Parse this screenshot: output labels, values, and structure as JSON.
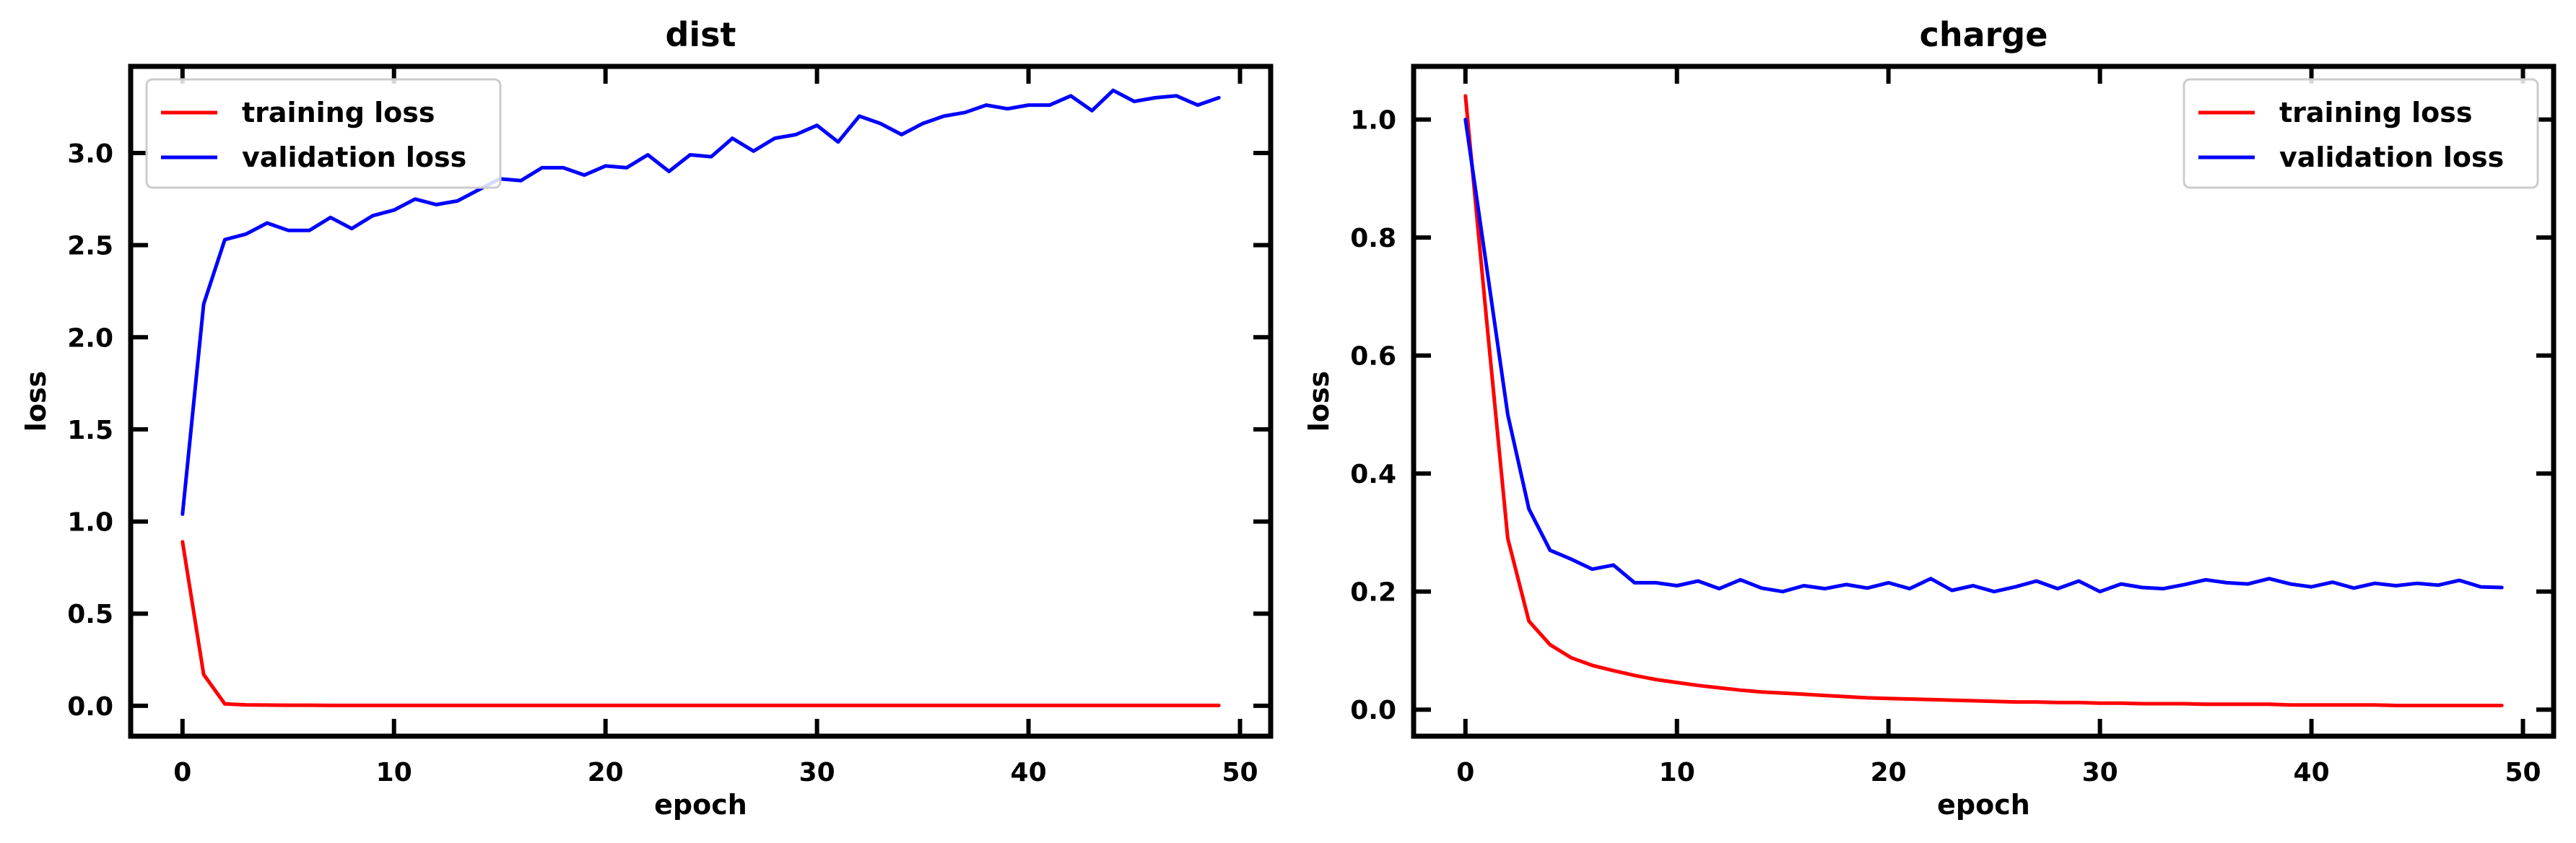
{
  "chart_data": [
    {
      "type": "line",
      "title": "dist",
      "xlabel": "epoch",
      "ylabel": "loss",
      "xlim": [
        -2.45,
        51.45
      ],
      "ylim": [
        -0.165,
        3.47
      ],
      "xticks": [
        0,
        10,
        20,
        30,
        40,
        50
      ],
      "xtick_labels": [
        "0",
        "10",
        "20",
        "30",
        "40",
        "50"
      ],
      "yticks": [
        0.0,
        0.5,
        1.0,
        1.5,
        2.0,
        2.5,
        3.0
      ],
      "ytick_labels": [
        "0.0",
        "0.5",
        "1.0",
        "1.5",
        "2.0",
        "2.5",
        "3.0"
      ],
      "legend_position": "upper-left",
      "grid": false,
      "x": [
        0,
        1,
        2,
        3,
        4,
        5,
        6,
        7,
        8,
        9,
        10,
        11,
        12,
        13,
        14,
        15,
        16,
        17,
        18,
        19,
        20,
        21,
        22,
        23,
        24,
        25,
        26,
        27,
        28,
        29,
        30,
        31,
        32,
        33,
        34,
        35,
        36,
        37,
        38,
        39,
        40,
        41,
        42,
        43,
        44,
        45,
        46,
        47,
        48,
        49
      ],
      "series": [
        {
          "name": "training loss",
          "color": "#ff0000",
          "values": [
            0.89,
            0.17,
            0.01,
            0.005,
            0.004,
            0.003,
            0.003,
            0.002,
            0.002,
            0.002,
            0.002,
            0.002,
            0.002,
            0.002,
            0.002,
            0.002,
            0.002,
            0.002,
            0.002,
            0.002,
            0.002,
            0.002,
            0.002,
            0.002,
            0.002,
            0.002,
            0.002,
            0.002,
            0.002,
            0.002,
            0.002,
            0.002,
            0.002,
            0.002,
            0.002,
            0.002,
            0.002,
            0.002,
            0.002,
            0.002,
            0.002,
            0.002,
            0.002,
            0.002,
            0.002,
            0.002,
            0.002,
            0.002,
            0.002,
            0.002
          ]
        },
        {
          "name": "validation loss",
          "color": "#0000ff",
          "values": [
            1.04,
            2.18,
            2.53,
            2.56,
            2.62,
            2.58,
            2.58,
            2.65,
            2.59,
            2.66,
            2.69,
            2.75,
            2.72,
            2.74,
            2.8,
            2.86,
            2.85,
            2.92,
            2.92,
            2.88,
            2.93,
            2.92,
            2.99,
            2.9,
            2.99,
            2.98,
            3.08,
            3.01,
            3.08,
            3.1,
            3.15,
            3.06,
            3.2,
            3.16,
            3.1,
            3.16,
            3.2,
            3.22,
            3.26,
            3.24,
            3.26,
            3.26,
            3.31,
            3.23,
            3.34,
            3.28,
            3.3,
            3.31,
            3.26,
            3.3
          ]
        }
      ]
    },
    {
      "type": "line",
      "title": "charge",
      "xlabel": "epoch",
      "ylabel": "loss",
      "xlim": [
        -2.45,
        51.45
      ],
      "ylim": [
        -0.045,
        1.09
      ],
      "xticks": [
        0,
        10,
        20,
        30,
        40,
        50
      ],
      "xtick_labels": [
        "0",
        "10",
        "20",
        "30",
        "40",
        "50"
      ],
      "yticks": [
        0.0,
        0.2,
        0.4,
        0.6,
        0.8,
        1.0
      ],
      "ytick_labels": [
        "0.0",
        "0.2",
        "0.4",
        "0.6",
        "0.8",
        "1.0"
      ],
      "legend_position": "upper-right",
      "grid": false,
      "x": [
        0,
        1,
        2,
        3,
        4,
        5,
        6,
        7,
        8,
        9,
        10,
        11,
        12,
        13,
        14,
        15,
        16,
        17,
        18,
        19,
        20,
        21,
        22,
        23,
        24,
        25,
        26,
        27,
        28,
        29,
        30,
        31,
        32,
        33,
        34,
        35,
        36,
        37,
        38,
        39,
        40,
        41,
        42,
        43,
        44,
        45,
        46,
        47,
        48,
        49
      ],
      "series": [
        {
          "name": "training loss",
          "color": "#ff0000",
          "values": [
            1.04,
            0.66,
            0.29,
            0.15,
            0.11,
            0.088,
            0.075,
            0.066,
            0.058,
            0.051,
            0.046,
            0.041,
            0.037,
            0.033,
            0.03,
            0.028,
            0.026,
            0.024,
            0.022,
            0.02,
            0.019,
            0.018,
            0.017,
            0.016,
            0.015,
            0.014,
            0.013,
            0.013,
            0.012,
            0.012,
            0.011,
            0.011,
            0.01,
            0.01,
            0.01,
            0.009,
            0.009,
            0.009,
            0.009,
            0.008,
            0.008,
            0.008,
            0.008,
            0.008,
            0.007,
            0.007,
            0.007,
            0.007,
            0.007,
            0.007
          ]
        },
        {
          "name": "validation loss",
          "color": "#0000ff",
          "values": [
            1.0,
            0.75,
            0.5,
            0.34,
            0.27,
            0.255,
            0.238,
            0.245,
            0.215,
            0.215,
            0.21,
            0.218,
            0.205,
            0.22,
            0.206,
            0.2,
            0.21,
            0.205,
            0.212,
            0.206,
            0.215,
            0.205,
            0.222,
            0.202,
            0.21,
            0.2,
            0.208,
            0.218,
            0.205,
            0.218,
            0.2,
            0.213,
            0.207,
            0.205,
            0.212,
            0.22,
            0.215,
            0.213,
            0.222,
            0.213,
            0.208,
            0.216,
            0.206,
            0.214,
            0.21,
            0.214,
            0.211,
            0.219,
            0.208,
            0.207
          ]
        }
      ]
    }
  ]
}
